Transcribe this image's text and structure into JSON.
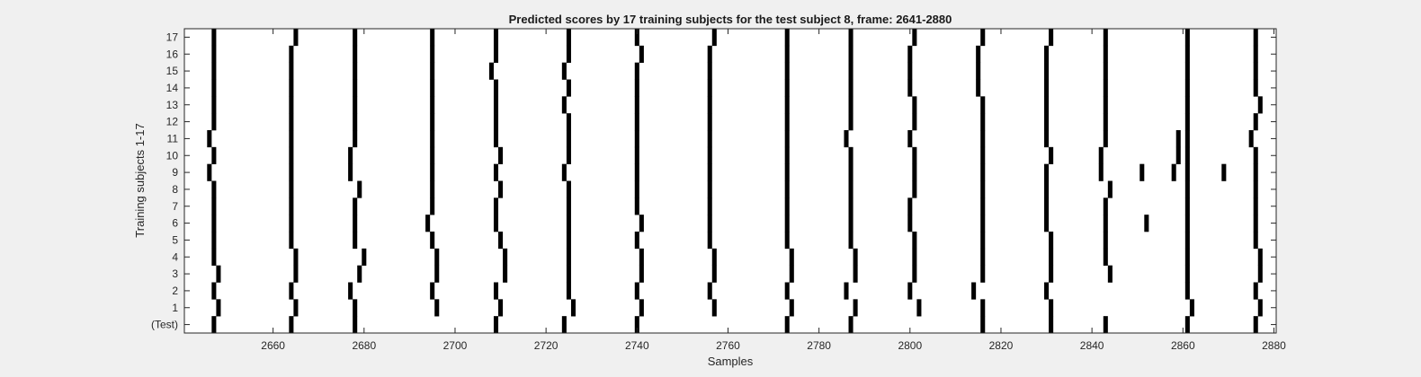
{
  "chart_data": {
    "type": "heatmap",
    "title": "Predicted scores by 17 training subjects for the test subject 8, frame: 2641-2880",
    "xlabel": "Samples",
    "ylabel": "Training subjects 1-17",
    "xlim": [
      2641,
      2880
    ],
    "x_ticks": [
      2660,
      2680,
      2700,
      2720,
      2740,
      2760,
      2780,
      2800,
      2820,
      2840,
      2860,
      2880
    ],
    "row_labels": [
      "(Test)",
      "1",
      "2",
      "3",
      "4",
      "5",
      "6",
      "7",
      "8",
      "9",
      "10",
      "11",
      "12",
      "13",
      "14",
      "15",
      "16",
      "17"
    ],
    "colors": {
      "mark": "#000000",
      "background": "#ffffff",
      "figure": "#f0f0f0"
    },
    "grid": false,
    "marked_samples": [
      [
        647,
        664,
        678,
        709,
        724,
        740,
        773,
        787,
        816,
        831,
        843,
        861,
        876
      ],
      [
        648,
        665,
        678,
        696,
        710,
        726,
        741,
        757,
        774,
        788,
        802,
        816,
        831,
        862,
        877
      ],
      [
        647,
        664,
        677,
        695,
        709,
        725,
        740,
        756,
        773,
        786,
        800,
        814,
        830,
        861,
        876
      ],
      [
        648,
        665,
        679,
        696,
        711,
        725,
        741,
        757,
        774,
        788,
        801,
        816,
        831,
        844,
        861,
        877
      ],
      [
        647,
        665,
        680,
        696,
        711,
        725,
        741,
        757,
        774,
        788,
        801,
        816,
        831,
        843,
        861,
        877
      ],
      [
        647,
        664,
        678,
        695,
        710,
        725,
        740,
        756,
        773,
        787,
        801,
        816,
        831,
        843,
        861,
        876
      ],
      [
        647,
        664,
        678,
        694,
        709,
        725,
        741,
        756,
        773,
        787,
        800,
        816,
        830,
        843,
        852,
        861,
        876
      ],
      [
        647,
        664,
        678,
        695,
        709,
        725,
        740,
        756,
        773,
        787,
        800,
        816,
        830,
        843,
        861,
        876
      ],
      [
        647,
        664,
        679,
        695,
        710,
        725,
        740,
        756,
        773,
        787,
        801,
        816,
        830,
        844,
        861,
        876
      ],
      [
        646,
        664,
        677,
        695,
        709,
        724,
        740,
        756,
        773,
        787,
        801,
        816,
        830,
        842,
        851,
        858,
        861,
        869,
        876
      ],
      [
        647,
        664,
        677,
        695,
        710,
        725,
        740,
        756,
        773,
        787,
        801,
        816,
        831,
        842,
        859,
        861,
        876
      ],
      [
        646,
        664,
        678,
        695,
        709,
        725,
        740,
        756,
        773,
        786,
        800,
        816,
        830,
        843,
        859,
        861,
        875
      ],
      [
        647,
        664,
        678,
        695,
        709,
        725,
        740,
        756,
        773,
        787,
        801,
        816,
        830,
        843,
        861,
        876
      ],
      [
        647,
        664,
        678,
        695,
        709,
        724,
        740,
        756,
        773,
        787,
        801,
        816,
        830,
        843,
        861,
        877
      ],
      [
        647,
        664,
        678,
        695,
        709,
        725,
        740,
        756,
        773,
        787,
        800,
        815,
        830,
        843,
        861,
        876
      ],
      [
        647,
        664,
        678,
        695,
        708,
        724,
        740,
        756,
        773,
        787,
        800,
        815,
        830,
        843,
        861,
        876
      ],
      [
        647,
        664,
        678,
        695,
        709,
        725,
        741,
        756,
        773,
        787,
        800,
        815,
        830,
        843,
        861,
        876
      ],
      [
        647,
        665,
        678,
        695,
        709,
        725,
        740,
        757,
        773,
        787,
        801,
        816,
        831,
        843,
        861,
        876
      ]
    ]
  }
}
